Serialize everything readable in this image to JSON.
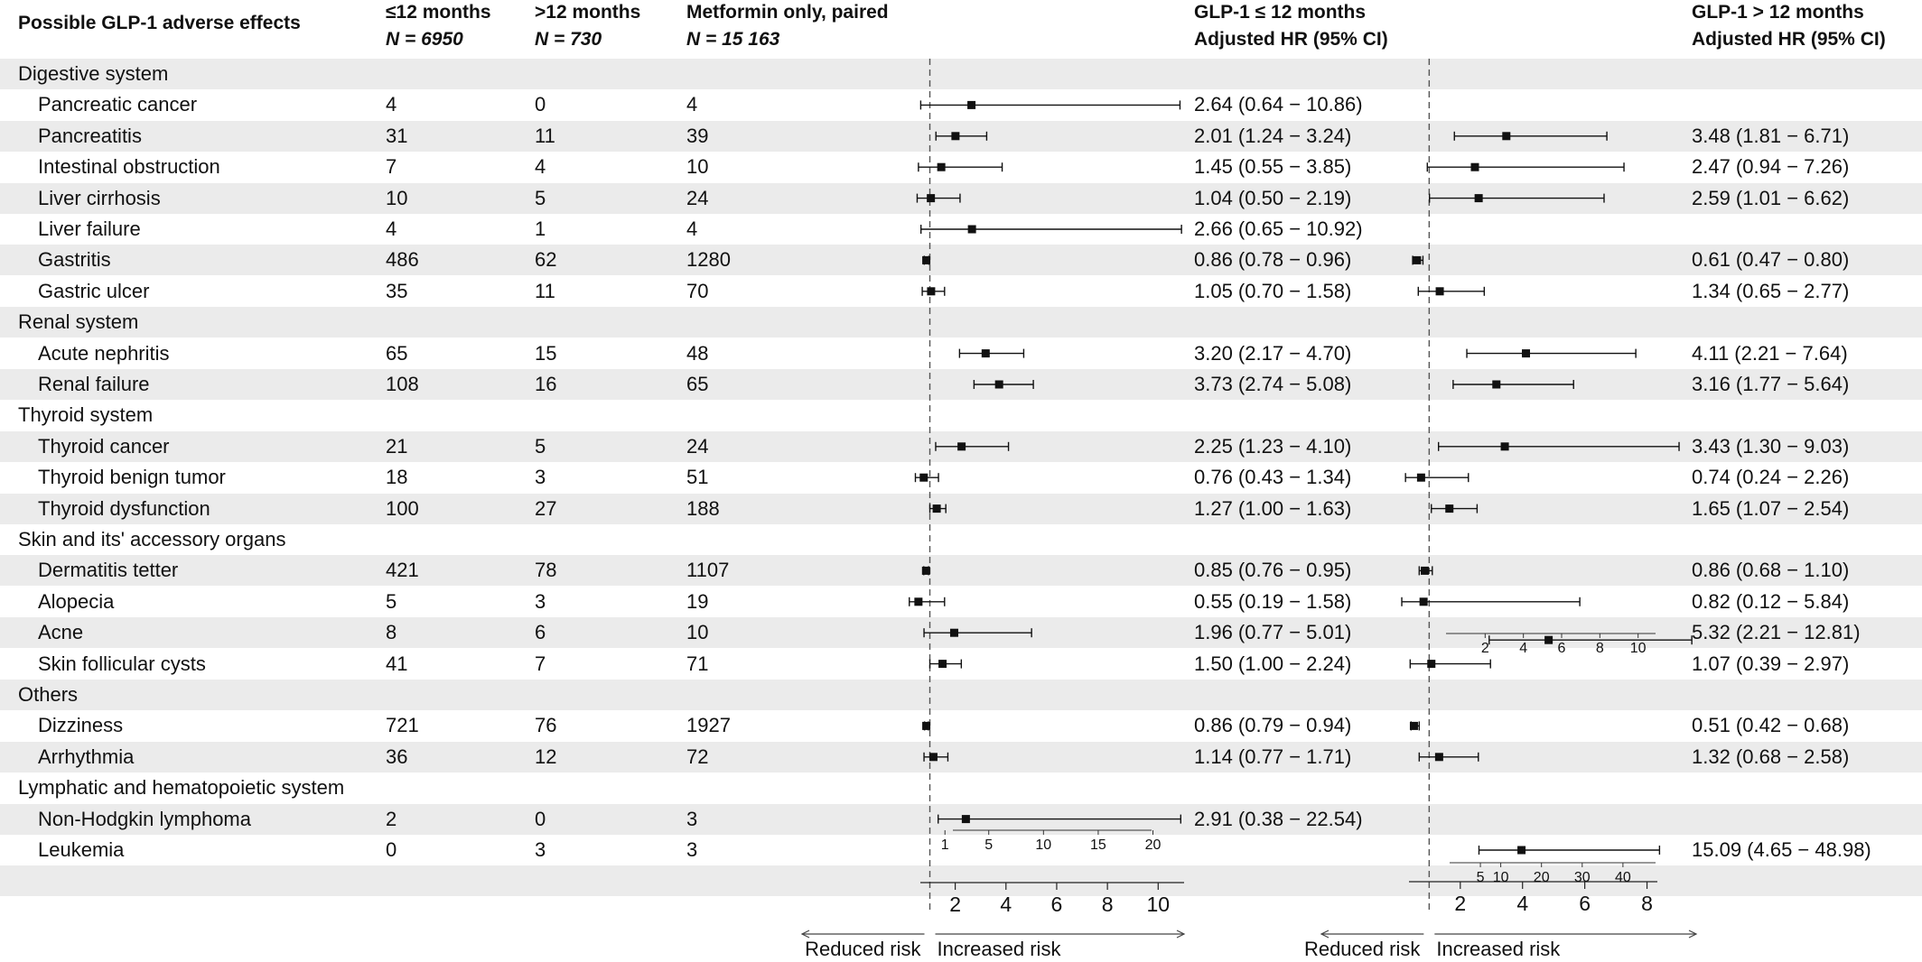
{
  "headers": {
    "effects": "Possible GLP-1 adverse effects",
    "le12_title": "≤12 months",
    "le12_n": "N = 6950",
    "gt12_title": ">12 months",
    "gt12_n": "N = 730",
    "met_title": "Metformin only, paired",
    "met_n": "N = 15 163",
    "hr_le12_title": "GLP-1 ≤ 12 months",
    "hr_le12_sub": "Adjusted HR (95% CI)",
    "hr_gt12_title": "GLP-1 > 12 months",
    "hr_gt12_sub": "Adjusted HR (95% CI)"
  },
  "rows": [
    {
      "name": "Digestive system",
      "group": true
    },
    {
      "name": "Pancreatic cancer",
      "n_le12": "4",
      "n_gt12": "0",
      "n_met": "4",
      "hr1_text": "2.64 (0.64 − 10.86)",
      "hr2_text": ""
    },
    {
      "name": "Pancreatitis",
      "n_le12": "31",
      "n_gt12": "11",
      "n_met": "39",
      "hr1_text": "2.01 (1.24 − 3.24)",
      "hr2_text": "3.48 (1.81 − 6.71)"
    },
    {
      "name": "Intestinal obstruction",
      "n_le12": "7",
      "n_gt12": "4",
      "n_met": "10",
      "hr1_text": "1.45 (0.55 − 3.85)",
      "hr2_text": "2.47 (0.94 − 7.26)"
    },
    {
      "name": "Liver cirrhosis",
      "n_le12": "10",
      "n_gt12": "5",
      "n_met": "24",
      "hr1_text": "1.04 (0.50 − 2.19)",
      "hr2_text": "2.59 (1.01 − 6.62)"
    },
    {
      "name": "Liver failure",
      "n_le12": "4",
      "n_gt12": "1",
      "n_met": "4",
      "hr1_text": "2.66 (0.65 − 10.92)",
      "hr2_text": ""
    },
    {
      "name": "Gastritis",
      "n_le12": "486",
      "n_gt12": "62",
      "n_met": "1280",
      "hr1_text": "0.86 (0.78 − 0.96)",
      "hr2_text": "0.61 (0.47 − 0.80)"
    },
    {
      "name": "Gastric ulcer",
      "n_le12": "35",
      "n_gt12": "11",
      "n_met": "70",
      "hr1_text": "1.05 (0.70 − 1.58)",
      "hr2_text": "1.34 (0.65 − 2.77)"
    },
    {
      "name": "Renal system",
      "group": true
    },
    {
      "name": "Acute nephritis",
      "n_le12": "65",
      "n_gt12": "15",
      "n_met": "48",
      "hr1_text": "3.20 (2.17 − 4.70)",
      "hr2_text": "4.11 (2.21 − 7.64)"
    },
    {
      "name": "Renal failure",
      "n_le12": "108",
      "n_gt12": "16",
      "n_met": "65",
      "hr1_text": "3.73 (2.74 − 5.08)",
      "hr2_text": "3.16 (1.77 − 5.64)"
    },
    {
      "name": "Thyroid system",
      "group": true
    },
    {
      "name": "Thyroid cancer",
      "n_le12": "21",
      "n_gt12": "5",
      "n_met": "24",
      "hr1_text": "2.25 (1.23 − 4.10)",
      "hr2_text": "3.43 (1.30 − 9.03)"
    },
    {
      "name": "Thyroid benign tumor",
      "n_le12": "18",
      "n_gt12": "3",
      "n_met": "51",
      "hr1_text": "0.76 (0.43 − 1.34)",
      "hr2_text": "0.74 (0.24 − 2.26)"
    },
    {
      "name": "Thyroid dysfunction",
      "n_le12": "100",
      "n_gt12": "27",
      "n_met": "188",
      "hr1_text": "1.27 (1.00 − 1.63)",
      "hr2_text": "1.65 (1.07 − 2.54)"
    },
    {
      "name": "Skin and its' accessory organs",
      "group": true
    },
    {
      "name": "Dermatitis tetter",
      "n_le12": "421",
      "n_gt12": "78",
      "n_met": "1107",
      "hr1_text": "0.85 (0.76 − 0.95)",
      "hr2_text": "0.86 (0.68 − 1.10)"
    },
    {
      "name": "Alopecia",
      "n_le12": "5",
      "n_gt12": "3",
      "n_met": "19",
      "hr1_text": "0.55 (0.19 − 1.58)",
      "hr2_text": "0.82 (0.12 − 5.84)"
    },
    {
      "name": "Acne",
      "n_le12": "8",
      "n_gt12": "6",
      "n_met": "10",
      "hr1_text": "1.96 (0.77 − 5.01)",
      "hr2_text": "5.32 (2.21 − 12.81)"
    },
    {
      "name": "Skin follicular cysts",
      "n_le12": "41",
      "n_gt12": "7",
      "n_met": "71",
      "hr1_text": "1.50 (1.00 − 2.24)",
      "hr2_text": "1.07 (0.39 − 2.97)"
    },
    {
      "name": "Others",
      "group": true
    },
    {
      "name": "Dizziness",
      "n_le12": "721",
      "n_gt12": "76",
      "n_met": "1927",
      "hr1_text": "0.86 (0.79 − 0.94)",
      "hr2_text": "0.51 (0.42 − 0.68)"
    },
    {
      "name": "Arrhythmia",
      "n_le12": "36",
      "n_gt12": "12",
      "n_met": "72",
      "hr1_text": "1.14 (0.77 − 1.71)",
      "hr2_text": "1.32 (0.68 − 2.58)"
    },
    {
      "name": "Lymphatic and hematopoietic system",
      "group": true
    },
    {
      "name": "Non-Hodgkin lymphoma",
      "n_le12": "2",
      "n_gt12": "0",
      "n_met": "3",
      "hr1_text": "2.91 (0.38 − 22.54)",
      "hr2_text": ""
    },
    {
      "name": "Leukemia",
      "n_le12": "0",
      "n_gt12": "3",
      "n_met": "3",
      "hr1_text": "",
      "hr2_text": "15.09 (4.65 − 48.98)"
    }
  ],
  "chart_data": [
    {
      "type": "forest",
      "reference": 1,
      "axis_ticks": [
        2,
        4,
        6,
        8,
        10
      ],
      "xlim": [
        -0.3,
        11.2
      ],
      "direction_left": "Reduced risk",
      "direction_right": "Increased risk",
      "points": [
        {
          "row": 1,
          "hr": 2.64,
          "lo": 0.64,
          "hi": 10.86
        },
        {
          "row": 2,
          "hr": 2.01,
          "lo": 1.24,
          "hi": 3.24
        },
        {
          "row": 3,
          "hr": 1.45,
          "lo": 0.55,
          "hi": 3.85
        },
        {
          "row": 4,
          "hr": 1.04,
          "lo": 0.5,
          "hi": 2.19
        },
        {
          "row": 5,
          "hr": 2.66,
          "lo": 0.65,
          "hi": 10.92
        },
        {
          "row": 6,
          "hr": 0.86,
          "lo": 0.78,
          "hi": 0.96
        },
        {
          "row": 7,
          "hr": 1.05,
          "lo": 0.7,
          "hi": 1.58
        },
        {
          "row": 9,
          "hr": 3.2,
          "lo": 2.17,
          "hi": 4.7
        },
        {
          "row": 10,
          "hr": 3.73,
          "lo": 2.74,
          "hi": 5.08
        },
        {
          "row": 12,
          "hr": 2.25,
          "lo": 1.23,
          "hi": 4.1
        },
        {
          "row": 13,
          "hr": 0.76,
          "lo": 0.43,
          "hi": 1.34
        },
        {
          "row": 14,
          "hr": 1.27,
          "lo": 1.0,
          "hi": 1.63
        },
        {
          "row": 16,
          "hr": 0.85,
          "lo": 0.76,
          "hi": 0.95
        },
        {
          "row": 17,
          "hr": 0.55,
          "lo": 0.19,
          "hi": 1.58
        },
        {
          "row": 18,
          "hr": 1.96,
          "lo": 0.77,
          "hi": 5.01
        },
        {
          "row": 19,
          "hr": 1.5,
          "lo": 1.0,
          "hi": 2.24
        },
        {
          "row": 21,
          "hr": 0.86,
          "lo": 0.79,
          "hi": 0.94
        },
        {
          "row": 22,
          "hr": 1.14,
          "lo": 0.77,
          "hi": 1.71
        }
      ],
      "inset": {
        "row": 24,
        "hr": 2.91,
        "lo": 0.38,
        "hi": 22.54,
        "xlim": [
          -1,
          24
        ],
        "ticks": [
          1,
          5,
          10,
          15,
          20
        ]
      }
    },
    {
      "type": "forest",
      "reference": 1,
      "axis_ticks": [
        2,
        4,
        6,
        8
      ],
      "xlim": [
        -0.2,
        9.0
      ],
      "direction_left": "Reduced risk",
      "direction_right": "Increased risk",
      "points": [
        {
          "row": 2,
          "hr": 3.48,
          "lo": 1.81,
          "hi": 6.71
        },
        {
          "row": 3,
          "hr": 2.47,
          "lo": 0.94,
          "hi": 7.26
        },
        {
          "row": 4,
          "hr": 2.59,
          "lo": 1.01,
          "hi": 6.62
        },
        {
          "row": 6,
          "hr": 0.61,
          "lo": 0.47,
          "hi": 0.8
        },
        {
          "row": 7,
          "hr": 1.34,
          "lo": 0.65,
          "hi": 2.77
        },
        {
          "row": 9,
          "hr": 4.11,
          "lo": 2.21,
          "hi": 7.64
        },
        {
          "row": 10,
          "hr": 3.16,
          "lo": 1.77,
          "hi": 5.64
        },
        {
          "row": 12,
          "hr": 3.43,
          "lo": 1.3,
          "hi": 9.03
        },
        {
          "row": 13,
          "hr": 0.74,
          "lo": 0.24,
          "hi": 2.26
        },
        {
          "row": 14,
          "hr": 1.65,
          "lo": 1.07,
          "hi": 2.54
        },
        {
          "row": 16,
          "hr": 0.86,
          "lo": 0.68,
          "hi": 1.1
        },
        {
          "row": 17,
          "hr": 0.82,
          "lo": 0.12,
          "hi": 5.84
        },
        {
          "row": 19,
          "hr": 1.07,
          "lo": 0.39,
          "hi": 2.97
        },
        {
          "row": 21,
          "hr": 0.51,
          "lo": 0.42,
          "hi": 0.68
        },
        {
          "row": 22,
          "hr": 1.32,
          "lo": 0.68,
          "hi": 2.58
        }
      ],
      "insets": [
        {
          "row": 18,
          "hr": 5.32,
          "lo": 2.21,
          "hi": 12.81,
          "xlim": [
            0,
            12
          ],
          "ticks": [
            2,
            4,
            6,
            8,
            10
          ]
        },
        {
          "row": 25,
          "hr": 15.09,
          "lo": 4.65,
          "hi": 48.98,
          "xlim": [
            -1,
            52
          ],
          "ticks": [
            5,
            10,
            20,
            30,
            40
          ]
        }
      ]
    }
  ]
}
